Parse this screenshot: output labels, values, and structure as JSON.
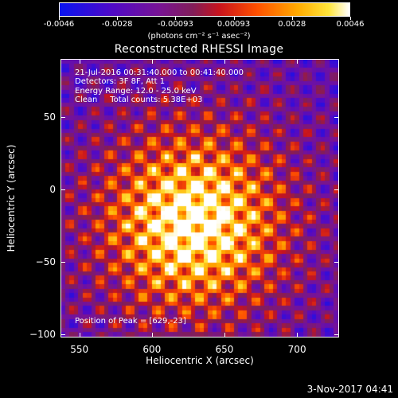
{
  "colorbar": {
    "ticks": [
      "-0.0046",
      "-0.0028",
      "-0.00093",
      "0.00093",
      "0.0028",
      "0.0046"
    ],
    "units": "(photons cm⁻² s⁻¹ asec⁻²)",
    "vmin": -0.0046,
    "vmax": 0.0046
  },
  "title": "Reconstructed RHESSI Image",
  "info": {
    "line1": "21-Jul-2016 00:31:40.000 to 00:41:40.000",
    "line2": "Detectors: 3F 8F, Att 1",
    "line3": "Energy Range: 12.0 - 25.0 keV",
    "line4": "Clean     Total counts: 5.38E+03"
  },
  "peak": "Position of Peak = [629,-23]",
  "axes": {
    "xlabel": "Heliocentric X (arcsec)",
    "ylabel": "Heliocentric Y (arcsec)",
    "xticks": [
      "550",
      "600",
      "650",
      "700"
    ],
    "yticks": [
      "50",
      "0",
      "−50",
      "−100"
    ],
    "xlim": [
      537,
      729
    ],
    "ylim": [
      -102,
      90
    ]
  },
  "source": {
    "x": 629,
    "y": -23
  },
  "timestamp": "3-Nov-2017 04:41"
}
